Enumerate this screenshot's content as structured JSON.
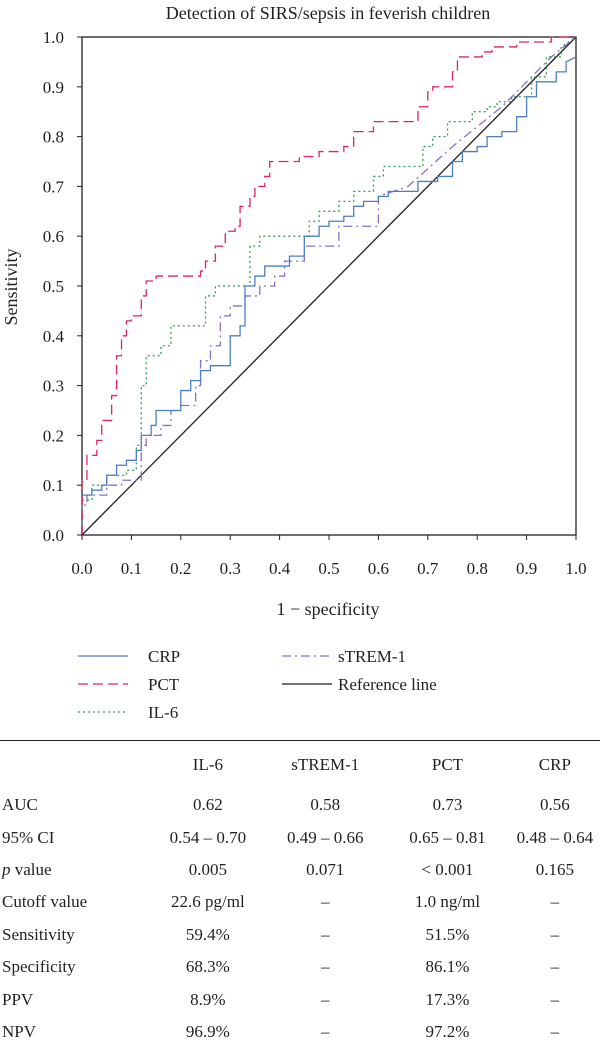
{
  "chart_data": {
    "type": "line",
    "title": "Detection of SIRS/sepsis in feverish children",
    "xlabel": "1 − specificity",
    "ylabel": "Sensitivity",
    "xlim": [
      0,
      1
    ],
    "ylim": [
      0,
      1
    ],
    "x_ticks": [
      "0.0",
      "0.1",
      "0.2",
      "0.3",
      "0.4",
      "0.5",
      "0.6",
      "0.7",
      "0.8",
      "0.9",
      "1.0"
    ],
    "y_ticks": [
      "0.0",
      "0.1",
      "0.2",
      "0.3",
      "0.4",
      "0.5",
      "0.6",
      "0.7",
      "0.8",
      "0.9",
      "1.0"
    ],
    "grid": false,
    "legend_position": "bottom",
    "series": [
      {
        "name": "CRP",
        "color": "#4a7fc1",
        "dash": "solid",
        "points": [
          [
            0,
            0
          ],
          [
            0,
            0.08
          ],
          [
            0.02,
            0.08
          ],
          [
            0.02,
            0.09
          ],
          [
            0.04,
            0.09
          ],
          [
            0.04,
            0.1
          ],
          [
            0.05,
            0.1
          ],
          [
            0.05,
            0.12
          ],
          [
            0.07,
            0.12
          ],
          [
            0.07,
            0.14
          ],
          [
            0.09,
            0.14
          ],
          [
            0.09,
            0.15
          ],
          [
            0.11,
            0.15
          ],
          [
            0.11,
            0.17
          ],
          [
            0.12,
            0.17
          ],
          [
            0.12,
            0.2
          ],
          [
            0.14,
            0.2
          ],
          [
            0.14,
            0.22
          ],
          [
            0.15,
            0.22
          ],
          [
            0.15,
            0.25
          ],
          [
            0.2,
            0.25
          ],
          [
            0.2,
            0.29
          ],
          [
            0.22,
            0.29
          ],
          [
            0.22,
            0.31
          ],
          [
            0.24,
            0.31
          ],
          [
            0.24,
            0.33
          ],
          [
            0.26,
            0.33
          ],
          [
            0.26,
            0.34
          ],
          [
            0.3,
            0.34
          ],
          [
            0.3,
            0.4
          ],
          [
            0.32,
            0.4
          ],
          [
            0.32,
            0.42
          ],
          [
            0.33,
            0.42
          ],
          [
            0.33,
            0.5
          ],
          [
            0.35,
            0.5
          ],
          [
            0.35,
            0.52
          ],
          [
            0.37,
            0.52
          ],
          [
            0.37,
            0.54
          ],
          [
            0.42,
            0.54
          ],
          [
            0.42,
            0.56
          ],
          [
            0.45,
            0.56
          ],
          [
            0.45,
            0.6
          ],
          [
            0.48,
            0.6
          ],
          [
            0.48,
            0.62
          ],
          [
            0.5,
            0.62
          ],
          [
            0.5,
            0.63
          ],
          [
            0.53,
            0.63
          ],
          [
            0.53,
            0.64
          ],
          [
            0.55,
            0.64
          ],
          [
            0.55,
            0.66
          ],
          [
            0.57,
            0.66
          ],
          [
            0.57,
            0.67
          ],
          [
            0.6,
            0.67
          ],
          [
            0.6,
            0.68
          ],
          [
            0.62,
            0.68
          ],
          [
            0.62,
            0.69
          ],
          [
            0.68,
            0.69
          ],
          [
            0.68,
            0.71
          ],
          [
            0.72,
            0.71
          ],
          [
            0.72,
            0.72
          ],
          [
            0.75,
            0.72
          ],
          [
            0.75,
            0.75
          ],
          [
            0.77,
            0.75
          ],
          [
            0.77,
            0.77
          ],
          [
            0.8,
            0.77
          ],
          [
            0.8,
            0.78
          ],
          [
            0.82,
            0.78
          ],
          [
            0.82,
            0.8
          ],
          [
            0.85,
            0.8
          ],
          [
            0.85,
            0.81
          ],
          [
            0.88,
            0.81
          ],
          [
            0.88,
            0.84
          ],
          [
            0.9,
            0.84
          ],
          [
            0.9,
            0.88
          ],
          [
            0.92,
            0.88
          ],
          [
            0.92,
            0.91
          ],
          [
            0.96,
            0.91
          ],
          [
            0.96,
            0.93
          ],
          [
            0.98,
            0.93
          ],
          [
            0.98,
            0.95
          ],
          [
            1,
            0.96
          ]
        ]
      },
      {
        "name": "PCT",
        "color": "#e0245e",
        "dash": "dashed",
        "points": [
          [
            0,
            0
          ],
          [
            0,
            0.11
          ],
          [
            0.01,
            0.11
          ],
          [
            0.01,
            0.16
          ],
          [
            0.03,
            0.16
          ],
          [
            0.03,
            0.19
          ],
          [
            0.04,
            0.19
          ],
          [
            0.04,
            0.23
          ],
          [
            0.06,
            0.23
          ],
          [
            0.06,
            0.28
          ],
          [
            0.07,
            0.28
          ],
          [
            0.07,
            0.36
          ],
          [
            0.08,
            0.36
          ],
          [
            0.08,
            0.4
          ],
          [
            0.09,
            0.4
          ],
          [
            0.09,
            0.43
          ],
          [
            0.1,
            0.43
          ],
          [
            0.1,
            0.44
          ],
          [
            0.12,
            0.44
          ],
          [
            0.12,
            0.48
          ],
          [
            0.13,
            0.48
          ],
          [
            0.13,
            0.51
          ],
          [
            0.15,
            0.51
          ],
          [
            0.15,
            0.52
          ],
          [
            0.24,
            0.52
          ],
          [
            0.24,
            0.53
          ],
          [
            0.25,
            0.53
          ],
          [
            0.25,
            0.55
          ],
          [
            0.27,
            0.55
          ],
          [
            0.27,
            0.58
          ],
          [
            0.29,
            0.58
          ],
          [
            0.29,
            0.61
          ],
          [
            0.31,
            0.61
          ],
          [
            0.31,
            0.62
          ],
          [
            0.32,
            0.62
          ],
          [
            0.32,
            0.66
          ],
          [
            0.34,
            0.66
          ],
          [
            0.34,
            0.68
          ],
          [
            0.35,
            0.68
          ],
          [
            0.35,
            0.7
          ],
          [
            0.37,
            0.7
          ],
          [
            0.37,
            0.72
          ],
          [
            0.38,
            0.72
          ],
          [
            0.38,
            0.75
          ],
          [
            0.44,
            0.75
          ],
          [
            0.44,
            0.76
          ],
          [
            0.48,
            0.76
          ],
          [
            0.48,
            0.77
          ],
          [
            0.53,
            0.77
          ],
          [
            0.53,
            0.78
          ],
          [
            0.55,
            0.78
          ],
          [
            0.55,
            0.81
          ],
          [
            0.59,
            0.81
          ],
          [
            0.59,
            0.83
          ],
          [
            0.68,
            0.83
          ],
          [
            0.68,
            0.86
          ],
          [
            0.7,
            0.86
          ],
          [
            0.7,
            0.89
          ],
          [
            0.71,
            0.89
          ],
          [
            0.71,
            0.9
          ],
          [
            0.75,
            0.9
          ],
          [
            0.75,
            0.93
          ],
          [
            0.76,
            0.93
          ],
          [
            0.76,
            0.96
          ],
          [
            0.81,
            0.96
          ],
          [
            0.81,
            0.97
          ],
          [
            0.83,
            0.97
          ],
          [
            0.83,
            0.98
          ],
          [
            0.88,
            0.98
          ],
          [
            0.88,
            0.99
          ],
          [
            0.95,
            0.99
          ],
          [
            0.95,
            1
          ],
          [
            1,
            1
          ]
        ]
      },
      {
        "name": "IL-6",
        "color": "#2fa04e",
        "dash": "dotted",
        "points": [
          [
            0,
            0
          ],
          [
            0,
            0.07
          ],
          [
            0.02,
            0.07
          ],
          [
            0.02,
            0.1
          ],
          [
            0.05,
            0.1
          ],
          [
            0.05,
            0.12
          ],
          [
            0.09,
            0.12
          ],
          [
            0.09,
            0.13
          ],
          [
            0.11,
            0.13
          ],
          [
            0.11,
            0.18
          ],
          [
            0.12,
            0.18
          ],
          [
            0.12,
            0.3
          ],
          [
            0.13,
            0.3
          ],
          [
            0.13,
            0.36
          ],
          [
            0.16,
            0.36
          ],
          [
            0.16,
            0.38
          ],
          [
            0.18,
            0.38
          ],
          [
            0.18,
            0.42
          ],
          [
            0.25,
            0.42
          ],
          [
            0.25,
            0.48
          ],
          [
            0.27,
            0.48
          ],
          [
            0.27,
            0.5
          ],
          [
            0.34,
            0.5
          ],
          [
            0.34,
            0.58
          ],
          [
            0.36,
            0.58
          ],
          [
            0.36,
            0.6
          ],
          [
            0.46,
            0.6
          ],
          [
            0.46,
            0.63
          ],
          [
            0.48,
            0.63
          ],
          [
            0.48,
            0.65
          ],
          [
            0.52,
            0.65
          ],
          [
            0.52,
            0.67
          ],
          [
            0.55,
            0.67
          ],
          [
            0.55,
            0.69
          ],
          [
            0.59,
            0.69
          ],
          [
            0.59,
            0.72
          ],
          [
            0.61,
            0.72
          ],
          [
            0.61,
            0.74
          ],
          [
            0.69,
            0.74
          ],
          [
            0.69,
            0.78
          ],
          [
            0.71,
            0.78
          ],
          [
            0.71,
            0.8
          ],
          [
            0.74,
            0.8
          ],
          [
            0.74,
            0.83
          ],
          [
            0.79,
            0.83
          ],
          [
            0.79,
            0.85
          ],
          [
            0.82,
            0.85
          ],
          [
            0.82,
            0.86
          ],
          [
            0.84,
            0.86
          ],
          [
            0.84,
            0.87
          ],
          [
            0.87,
            0.87
          ],
          [
            0.87,
            0.88
          ],
          [
            0.91,
            0.88
          ],
          [
            0.91,
            0.92
          ],
          [
            0.94,
            0.92
          ],
          [
            0.94,
            0.96
          ],
          [
            0.97,
            0.96
          ],
          [
            0.97,
            0.98
          ],
          [
            1,
            1
          ]
        ]
      },
      {
        "name": "sTREM-1",
        "color": "#8a6fc7",
        "dash": "dashdot",
        "points": [
          [
            0,
            0
          ],
          [
            0,
            0.06
          ],
          [
            0.01,
            0.06
          ],
          [
            0.01,
            0.08
          ],
          [
            0.05,
            0.08
          ],
          [
            0.05,
            0.1
          ],
          [
            0.08,
            0.1
          ],
          [
            0.08,
            0.11
          ],
          [
            0.12,
            0.11
          ],
          [
            0.12,
            0.18
          ],
          [
            0.13,
            0.18
          ],
          [
            0.13,
            0.2
          ],
          [
            0.16,
            0.2
          ],
          [
            0.16,
            0.22
          ],
          [
            0.18,
            0.22
          ],
          [
            0.18,
            0.25
          ],
          [
            0.2,
            0.25
          ],
          [
            0.2,
            0.26
          ],
          [
            0.23,
            0.26
          ],
          [
            0.23,
            0.3
          ],
          [
            0.24,
            0.3
          ],
          [
            0.24,
            0.35
          ],
          [
            0.26,
            0.35
          ],
          [
            0.26,
            0.38
          ],
          [
            0.28,
            0.38
          ],
          [
            0.28,
            0.44
          ],
          [
            0.3,
            0.44
          ],
          [
            0.3,
            0.46
          ],
          [
            0.33,
            0.46
          ],
          [
            0.33,
            0.48
          ],
          [
            0.36,
            0.48
          ],
          [
            0.36,
            0.5
          ],
          [
            0.39,
            0.5
          ],
          [
            0.39,
            0.52
          ],
          [
            0.41,
            0.52
          ],
          [
            0.41,
            0.55
          ],
          [
            0.45,
            0.55
          ],
          [
            0.45,
            0.58
          ],
          [
            0.52,
            0.58
          ],
          [
            0.52,
            0.62
          ],
          [
            0.6,
            0.62
          ],
          [
            0.6,
            0.68
          ],
          [
            0.66,
            0.7
          ],
          [
            0.75,
            0.78
          ],
          [
            0.85,
            0.86
          ],
          [
            0.95,
            0.96
          ],
          [
            1,
            1
          ]
        ]
      },
      {
        "name": "Reference line",
        "color": "#231f20",
        "dash": "solid",
        "points": [
          [
            0,
            0
          ],
          [
            1,
            1
          ]
        ]
      }
    ],
    "legend": {
      "left": [
        {
          "label": "CRP",
          "series": 0
        },
        {
          "label": "PCT",
          "series": 1
        },
        {
          "label": "IL-6",
          "series": 2
        }
      ],
      "right": [
        {
          "label": "sTREM-1",
          "series": 3
        },
        {
          "label": "Reference line",
          "series": 4
        }
      ]
    }
  },
  "table": {
    "headers": [
      "",
      "IL-6",
      "sTREM-1",
      "PCT",
      "CRP"
    ],
    "rows": [
      {
        "label": "AUC",
        "label_italic": "",
        "cells": [
          "0.62",
          "0.58",
          "0.73",
          "0.56"
        ]
      },
      {
        "label": "95% CI",
        "label_italic": "",
        "cells": [
          "0.54 – 0.70",
          "0.49 – 0.66",
          "0.65 – 0.81",
          "0.48 – 0.64"
        ]
      },
      {
        "label": " value",
        "label_italic": "p",
        "cells": [
          "0.005",
          "0.071",
          "< 0.001",
          "0.165"
        ]
      },
      {
        "label": "Cutoff value",
        "label_italic": "",
        "cells": [
          "22.6 pg/ml",
          "–",
          "1.0 ng/ml",
          "–"
        ]
      },
      {
        "label": "Sensitivity",
        "label_italic": "",
        "cells": [
          "59.4%",
          "–",
          "51.5%",
          "–"
        ]
      },
      {
        "label": "Specificity",
        "label_italic": "",
        "cells": [
          "68.3%",
          "–",
          "86.1%",
          "–"
        ]
      },
      {
        "label": "PPV",
        "label_italic": "",
        "cells": [
          "8.9%",
          "–",
          "17.3%",
          "–"
        ]
      },
      {
        "label": "NPV",
        "label_italic": "",
        "cells": [
          "96.9%",
          "–",
          "97.2%",
          "–"
        ]
      }
    ]
  }
}
